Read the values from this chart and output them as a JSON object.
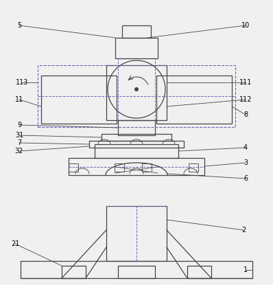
{
  "fig_width": 3.98,
  "fig_height": 4.15,
  "dpi": 100,
  "bg_color": "#f0f0f0",
  "line_color": "#444444",
  "dashed_color": "#6666bb",
  "lw": 0.9
}
